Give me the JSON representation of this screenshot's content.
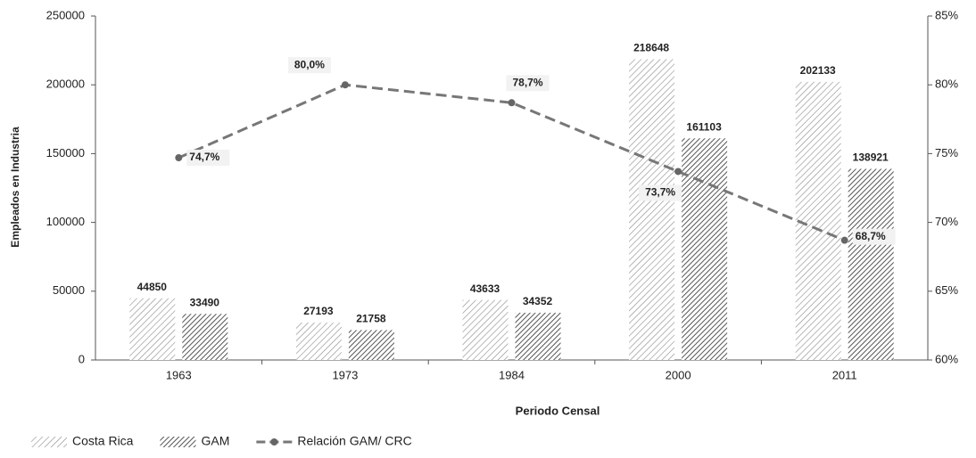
{
  "chart_data": {
    "type": "bar",
    "categories": [
      "1963",
      "1973",
      "1984",
      "2000",
      "2011"
    ],
    "series": [
      {
        "name": "Costa Rica",
        "color": "#8a8a8a",
        "values": [
          44850,
          27193,
          43633,
          218648,
          202133
        ]
      },
      {
        "name": "GAM",
        "color": "#555555",
        "values": [
          33490,
          21758,
          34352,
          161103,
          138921
        ]
      },
      {
        "name": "Relación GAM/ CRC",
        "type": "line",
        "axis": "y2",
        "color": "#777777",
        "values": [
          74.7,
          80.0,
          78.7,
          73.7,
          68.7
        ],
        "value_labels": [
          "74,7%",
          "80,0%",
          "78,7%",
          "73,7%",
          "68,7%"
        ]
      }
    ],
    "xlabel": "Periodo Censal",
    "ylabel": "Empleados en Industria",
    "ylim": [
      0,
      250000
    ],
    "yticks": [
      0,
      50000,
      100000,
      150000,
      200000,
      250000
    ],
    "y2lim": [
      60,
      85
    ],
    "y2ticks": [
      {
        "value": 60,
        "label": "60%"
      },
      {
        "value": 65,
        "label": "65%"
      },
      {
        "value": 70,
        "label": "70%"
      },
      {
        "value": 75,
        "label": "75%"
      },
      {
        "value": 80,
        "label": "80%"
      },
      {
        "value": 85,
        "label": "85%"
      }
    ],
    "legend": "bottom-left"
  }
}
